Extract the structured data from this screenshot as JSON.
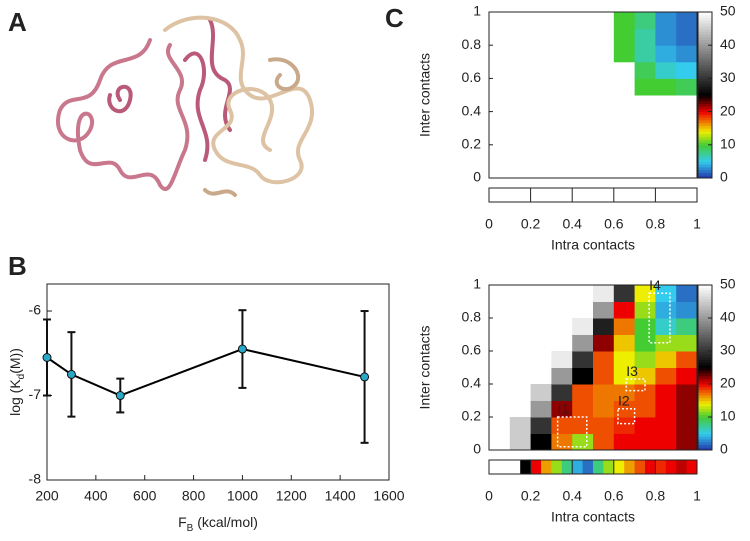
{
  "panel_labels": [
    "A",
    "B",
    "C"
  ],
  "chart_data": [
    {
      "type": "line",
      "xlabel": [
        "F",
        "B",
        " (kcal/mol)"
      ],
      "ylabel": [
        "log (K",
        "d",
        "(M))"
      ],
      "x": [
        200,
        300,
        500,
        1000,
        1500
      ],
      "values": [
        -6.55,
        -6.75,
        -7.0,
        -6.45,
        -6.78
      ],
      "errors": [
        0.45,
        0.5,
        0.2,
        0.46,
        0.78
      ],
      "color": "#2aa8c8",
      "line_color": "#000000",
      "xlim": [
        200,
        1600
      ],
      "xticks": [
        200,
        400,
        600,
        800,
        1000,
        1200,
        1400,
        1600
      ],
      "ylim": [
        -8,
        -5.68
      ],
      "yticks": [
        -8,
        -7,
        -6
      ]
    },
    {
      "type": "heatmap",
      "xlabel": "Intra contacts",
      "ylabel": "Inter contacts",
      "xlim": [
        0,
        1
      ],
      "ylim": [
        0,
        1
      ],
      "xticks": [
        0,
        0.2,
        0.4,
        0.6,
        0.8,
        1
      ],
      "yticks": [
        0,
        0.2,
        0.4,
        0.6,
        0.8,
        1
      ],
      "zlim": [
        0,
        50
      ],
      "zticks": [
        0,
        10,
        20,
        30,
        40,
        50
      ],
      "colorscale": [
        [
          0,
          "#2233aa"
        ],
        [
          5,
          "#33ccee"
        ],
        [
          10,
          "#44cc33"
        ],
        [
          14,
          "#eeee00"
        ],
        [
          20,
          "#ee0000"
        ],
        [
          25,
          "#000000"
        ],
        [
          50,
          "#ffffff"
        ]
      ],
      "z": [
        [
          null,
          null,
          null,
          null,
          null,
          null,
          null,
          null,
          null,
          null
        ],
        [
          null,
          null,
          null,
          null,
          null,
          null,
          null,
          null,
          null,
          null
        ],
        [
          null,
          null,
          null,
          null,
          null,
          null,
          null,
          null,
          null,
          null
        ],
        [
          null,
          null,
          null,
          null,
          null,
          null,
          null,
          null,
          null,
          null
        ],
        [
          null,
          null,
          null,
          null,
          null,
          null,
          null,
          null,
          null,
          null
        ],
        [
          null,
          null,
          null,
          null,
          null,
          null,
          null,
          10,
          10,
          9
        ],
        [
          null,
          null,
          null,
          null,
          null,
          null,
          null,
          9,
          6,
          5
        ],
        [
          null,
          null,
          null,
          null,
          null,
          null,
          10,
          7,
          4,
          3
        ],
        [
          null,
          null,
          null,
          null,
          null,
          null,
          10,
          7,
          3,
          2
        ],
        [
          null,
          null,
          null,
          null,
          null,
          null,
          10,
          8,
          3,
          2
        ]
      ],
      "marginal": [
        null,
        null,
        null,
        null,
        null,
        null,
        null,
        null,
        null,
        null,
        null,
        null,
        null,
        null,
        null,
        null,
        null,
        null,
        null,
        null
      ]
    },
    {
      "type": "heatmap",
      "xlabel": "Intra contacts",
      "ylabel": "Inter contacts",
      "xlim": [
        0,
        1
      ],
      "ylim": [
        0,
        1
      ],
      "xticks": [
        0,
        0.2,
        0.4,
        0.6,
        0.8,
        1
      ],
      "yticks": [
        0,
        0.2,
        0.4,
        0.6,
        0.8,
        1
      ],
      "zlim": [
        0,
        50
      ],
      "zticks": [
        0,
        10,
        20,
        30,
        40,
        50
      ],
      "colorscale": [
        [
          0,
          "#2233aa"
        ],
        [
          5,
          "#33ccee"
        ],
        [
          10,
          "#44cc33"
        ],
        [
          14,
          "#eeee00"
        ],
        [
          20,
          "#ee0000"
        ],
        [
          25,
          "#000000"
        ],
        [
          50,
          "#ffffff"
        ]
      ],
      "z": [
        [
          null,
          45,
          25,
          17,
          12,
          18,
          20,
          20,
          20,
          22
        ],
        [
          null,
          45,
          30,
          18,
          18,
          18,
          19,
          20,
          20,
          22
        ],
        [
          null,
          null,
          40,
          22,
          18,
          17,
          18,
          18,
          20,
          22
        ],
        [
          null,
          null,
          45,
          30,
          18,
          17,
          17,
          18,
          20,
          22
        ],
        [
          null,
          null,
          null,
          40,
          25,
          18,
          14,
          15,
          18,
          20
        ],
        [
          null,
          null,
          null,
          48,
          30,
          18,
          14,
          12,
          15,
          18
        ],
        [
          null,
          null,
          null,
          null,
          40,
          22,
          15,
          10,
          12,
          12
        ],
        [
          null,
          null,
          null,
          null,
          48,
          28,
          17,
          10,
          6,
          8
        ],
        [
          null,
          null,
          null,
          null,
          null,
          40,
          20,
          12,
          4,
          3
        ],
        [
          null,
          null,
          null,
          null,
          null,
          48,
          30,
          14,
          5,
          2
        ]
      ],
      "marginal": [
        null,
        null,
        null,
        25,
        20,
        16,
        12,
        8,
        4,
        2,
        8,
        12,
        14,
        16,
        18,
        20,
        19,
        20,
        21,
        20
      ],
      "annotations": [
        {
          "text": "I1",
          "x": [
            0.33,
            0.47
          ],
          "y": [
            0.02,
            0.2
          ]
        },
        {
          "text": "I2",
          "x": [
            0.62,
            0.7
          ],
          "y": [
            0.16,
            0.25
          ]
        },
        {
          "text": "I3",
          "x": [
            0.66,
            0.75
          ],
          "y": [
            0.36,
            0.43
          ]
        },
        {
          "text": "I4",
          "x": [
            0.77,
            0.87
          ],
          "y": [
            0.65,
            0.95
          ]
        }
      ]
    }
  ]
}
